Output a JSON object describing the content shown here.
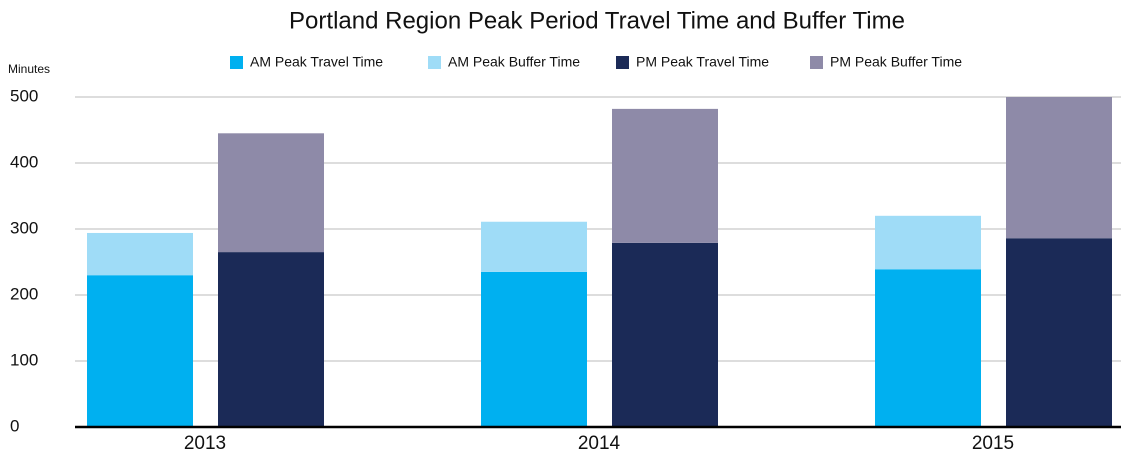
{
  "chart_data": {
    "type": "bar",
    "title": "Portland Region Peak Period Travel Time and Buffer Time",
    "y_label": "Minutes",
    "categories": [
      "2013",
      "2014",
      "2015"
    ],
    "series": [
      {
        "name": "AM Peak Travel Time",
        "color": "#00b0f0",
        "values": [
          230,
          235,
          239
        ]
      },
      {
        "name": "AM Peak Buffer Time",
        "color": "#9fdcf7",
        "values": [
          64,
          76,
          81
        ]
      },
      {
        "name": "PM Peak Travel Time",
        "color": "#1b2a57",
        "values": [
          265,
          279,
          286
        ]
      },
      {
        "name": "PM Peak Buffer Time",
        "color": "#8e8aa8",
        "values": [
          180,
          203,
          214
        ]
      }
    ],
    "ylim": [
      0,
      500
    ],
    "yticks": [
      0,
      100,
      200,
      300,
      400,
      500
    ],
    "grid": true,
    "legend": "top"
  }
}
